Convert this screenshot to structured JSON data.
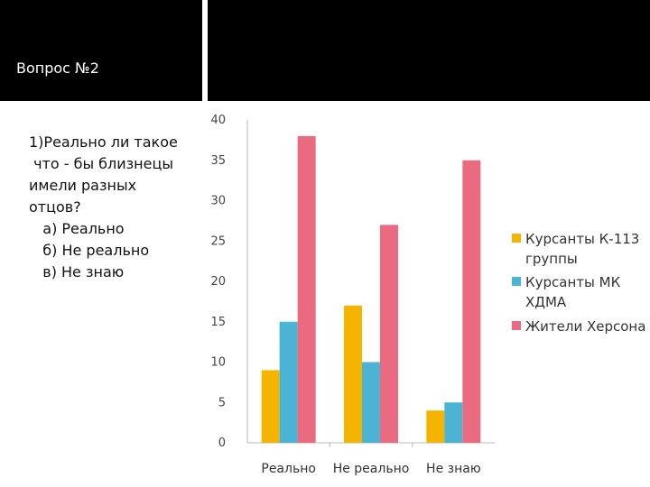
{
  "slide": {
    "title": "Вопрос №2",
    "question_lines": [
      "1)Реально ли такое",
      " что - бы близнецы",
      "имели разных",
      "отцов?",
      "   а) Реально",
      "   б) Не реально",
      "   в) Не знаю"
    ]
  },
  "chart_data": {
    "type": "bar",
    "categories": [
      "Реально",
      "Не реально",
      "Не знаю"
    ],
    "series": [
      {
        "name": "Курсанты К-113 группы",
        "values": [
          9,
          17,
          4
        ],
        "color": "#f5b400"
      },
      {
        "name": "Курсанты МК ХДМА",
        "values": [
          15,
          10,
          5
        ],
        "color": "#4bb3d4"
      },
      {
        "name": "Жители Херсона",
        "values": [
          38,
          27,
          35
        ],
        "color": "#ea6b7f"
      }
    ],
    "yticks": [
      0,
      5,
      10,
      15,
      20,
      25,
      30,
      35,
      40
    ],
    "ylim": [
      0,
      40
    ],
    "legend_position": "right",
    "legend_lines": [
      [
        "Курсанты К-113",
        "группы"
      ],
      [
        "Курсанты МК",
        "ХДМА"
      ],
      [
        "Жители Херсона"
      ]
    ]
  }
}
